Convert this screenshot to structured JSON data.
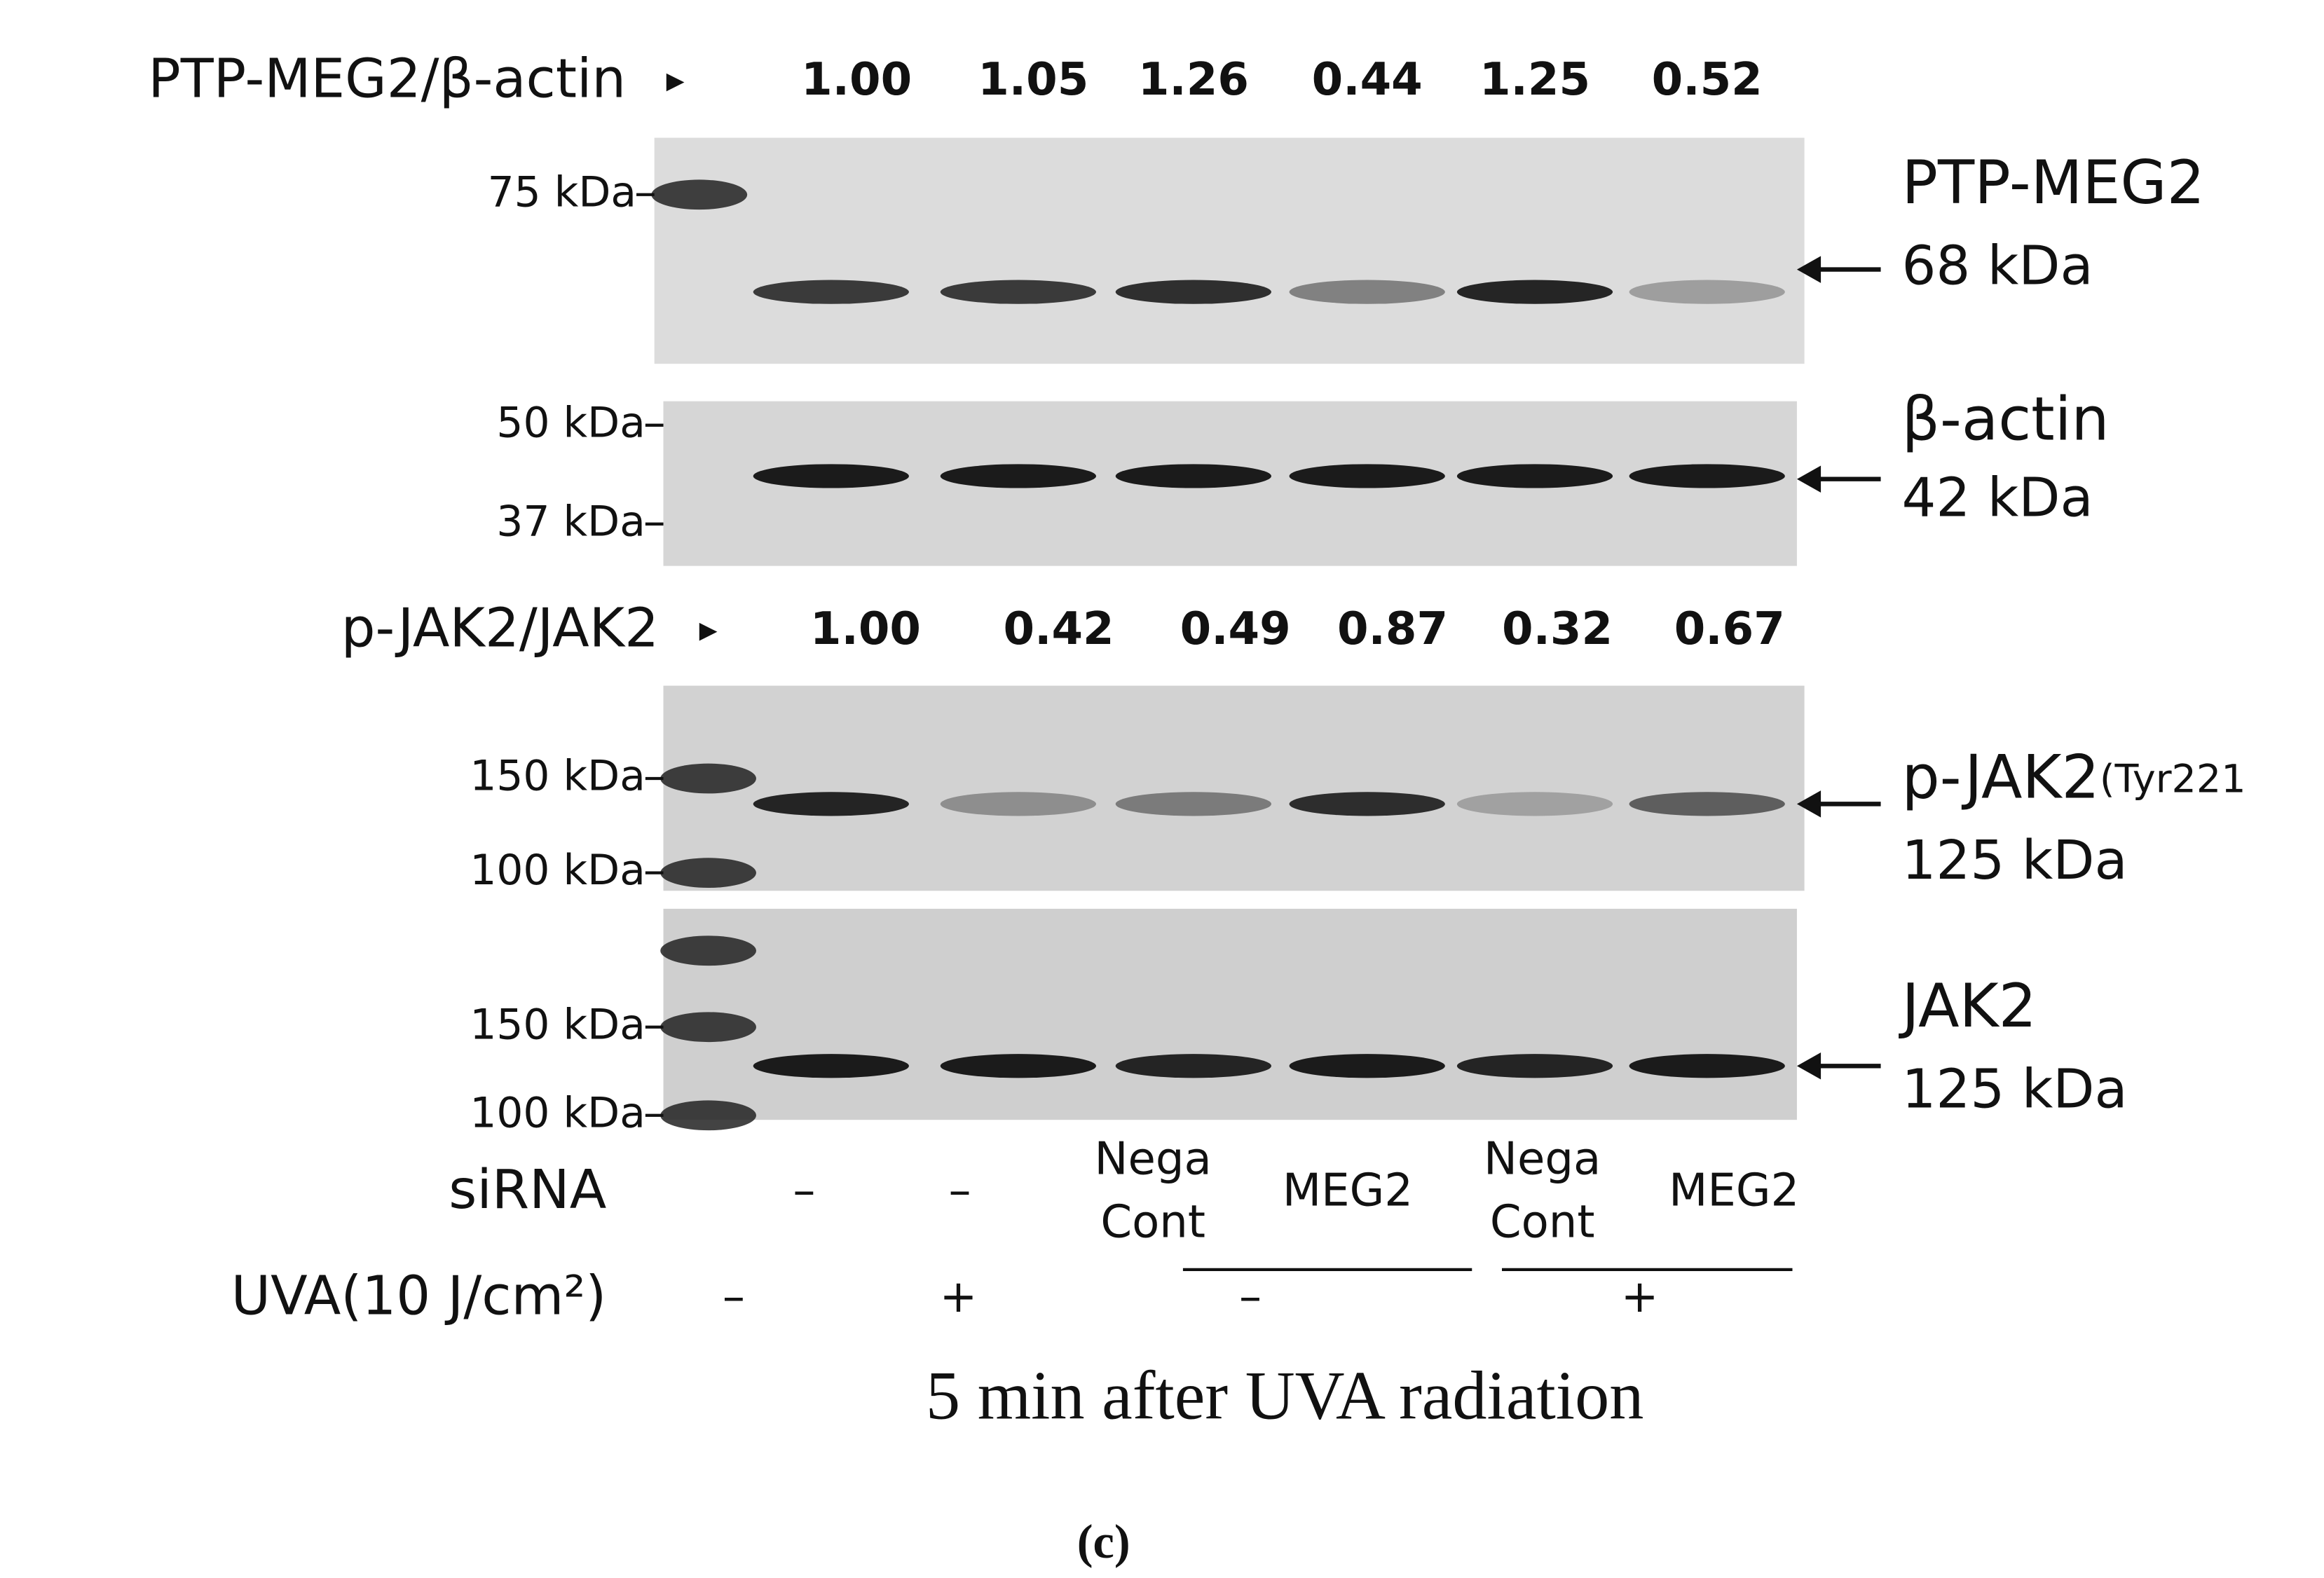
{
  "ratio_rows": [
    {
      "label": "PTP-MEG2/β-actin",
      "values": [
        "1.00",
        "1.05",
        "1.26",
        "0.44",
        "1.25",
        "0.52"
      ]
    },
    {
      "label": "p-JAK2/JAK2",
      "values": [
        "1.00",
        "0.42",
        "0.49",
        "0.87",
        "0.32",
        "0.67"
      ]
    }
  ],
  "blots": [
    {
      "name": "PTP-MEG2",
      "size": "68 kDa",
      "markers": [
        "75 kDa"
      ]
    },
    {
      "name": "β-actin",
      "size": "42 kDa",
      "markers": [
        "50 kDa",
        "37 kDa"
      ]
    },
    {
      "name": "p-JAK2",
      "modifier": "(Tyr221",
      "size": "125 kDa",
      "markers": [
        "150 kDa",
        "100 kDa"
      ]
    },
    {
      "name": "JAK2",
      "size": "125 kDa",
      "markers": [
        "150 kDa",
        "100 kDa"
      ]
    }
  ],
  "conditions": {
    "sirna_label": "siRNA",
    "sirna": [
      [
        "–"
      ],
      [
        "–"
      ],
      [
        "Nega",
        "Cont"
      ],
      [
        "MEG2"
      ],
      [
        "Nega",
        "Cont"
      ],
      [
        "MEG2"
      ]
    ],
    "uva_label": "UVA(10 J/cm²)",
    "uva": [
      "–",
      "+",
      "–",
      "+"
    ]
  },
  "caption": "5 min after UVA radiation",
  "panel_label": "(c)"
}
